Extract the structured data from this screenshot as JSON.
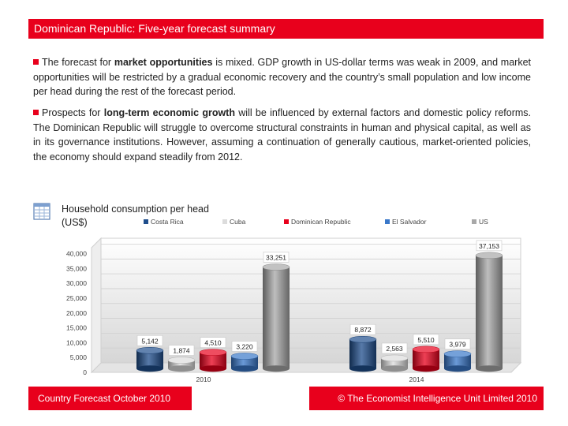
{
  "header": {
    "title": "Dominican Republic: Five-year forecast summary"
  },
  "paragraphs": [
    {
      "pre": "The forecast for ",
      "bold": "market opportunities",
      "post": " is mixed. GDP growth in US-dollar terms was weak in 2009, and market opportunities will be restricted by a gradual economic recovery and the country’s small population and low income per head during the rest of the forecast period."
    },
    {
      "pre": "Prospects for ",
      "bold": "long-term economic growth",
      "post": " will be influenced by external factors and domestic policy reforms. The Dominican Republic will struggle to overcome structural constraints in human and physical capital, as well as in its governance institutions. However, assuming a continuation of generally cautious, market-oriented policies, the economy should expand steadily from 2012."
    }
  ],
  "chart_data": {
    "type": "bar",
    "title": "Household consumption per head",
    "unit": "(US$)",
    "categories": [
      "2010",
      "2014"
    ],
    "series": [
      {
        "name": "Costa Rica",
        "color": "#1f4e8c",
        "values": [
          5142,
          8872
        ],
        "labels": [
          "5,142",
          "8,872"
        ]
      },
      {
        "name": "Cuba",
        "color": "#dcdcdc",
        "values": [
          1874,
          2563
        ],
        "labels": [
          "1,874",
          "2,563"
        ]
      },
      {
        "name": "Dominican Republic",
        "color": "#e8001c",
        "values": [
          4510,
          5510
        ],
        "labels": [
          "4,510",
          "5,510"
        ]
      },
      {
        "name": "El Salvador",
        "color": "#3a78c9",
        "values": [
          3220,
          3979
        ],
        "labels": [
          "3,220",
          "3,979"
        ]
      },
      {
        "name": "US",
        "color": "#a8a8a8",
        "values": [
          33251,
          37153
        ],
        "labels": [
          "33,251",
          "37,153"
        ]
      }
    ],
    "ylim": [
      0,
      42000
    ],
    "yticks": [
      0,
      5000,
      10000,
      15000,
      20000,
      25000,
      30000,
      35000,
      40000
    ],
    "ytick_labels": [
      "0",
      "5,000",
      "10,000",
      "15,000",
      "20,000",
      "25,000",
      "30,000",
      "35,000",
      "40,000"
    ],
    "grid": true,
    "legend_position": "top"
  },
  "footer": {
    "left": "Country Forecast October 2010",
    "right": "© The Economist Intelligence Unit Limited 2010"
  },
  "icons": {
    "chart_table": "table-icon"
  }
}
